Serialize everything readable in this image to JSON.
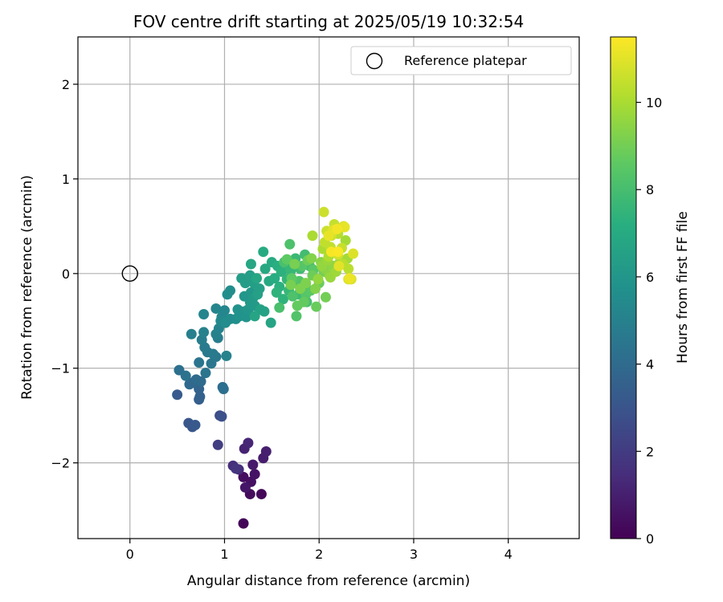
{
  "chart_data": {
    "type": "scatter",
    "title": "FOV centre drift starting at 2025/05/19 10:32:54",
    "xlabel": "Angular distance from reference (arcmin)",
    "ylabel": "Rotation from reference (arcmin)",
    "xlim": [
      -0.55,
      4.75
    ],
    "ylim": [
      -2.8,
      2.5
    ],
    "xticks": [
      0,
      1,
      2,
      3,
      4
    ],
    "yticks": [
      -2,
      -1,
      0,
      1,
      2
    ],
    "grid": true,
    "legend": {
      "position": "top-right",
      "entries": [
        "Reference platepar"
      ]
    },
    "reference_point": {
      "label": "Reference platepar",
      "x": 0,
      "y": 0
    },
    "colorbar": {
      "label": "Hours from first FF file",
      "colormap": "viridis",
      "range": [
        0,
        11.5
      ],
      "ticks": [
        0,
        2,
        4,
        6,
        8,
        10
      ]
    },
    "points": [
      [
        1.2,
        -2.64,
        0.1
      ],
      [
        1.39,
        -2.33,
        0.2
      ],
      [
        1.27,
        -2.33,
        0.3
      ],
      [
        1.2,
        -2.15,
        0.4
      ],
      [
        1.28,
        -2.2,
        0.5
      ],
      [
        1.32,
        -2.12,
        0.6
      ],
      [
        1.22,
        -2.26,
        0.7
      ],
      [
        1.3,
        -2.02,
        0.8
      ],
      [
        1.41,
        -1.95,
        0.9
      ],
      [
        1.44,
        -1.88,
        1.0
      ],
      [
        1.21,
        -1.85,
        1.1
      ],
      [
        1.25,
        -1.79,
        1.2
      ],
      [
        1.15,
        -2.07,
        1.4
      ],
      [
        1.09,
        -2.03,
        1.5
      ],
      [
        1.12,
        -2.06,
        1.7
      ],
      [
        0.93,
        -1.81,
        2.1
      ],
      [
        0.95,
        -1.5,
        2.6
      ],
      [
        0.97,
        -1.51,
        2.8
      ],
      [
        0.66,
        -1.62,
        3.0
      ],
      [
        0.62,
        -1.58,
        3.1
      ],
      [
        0.69,
        -1.6,
        3.2
      ],
      [
        0.5,
        -1.28,
        3.3
      ],
      [
        0.73,
        -1.33,
        3.4
      ],
      [
        0.74,
        -1.3,
        3.5
      ],
      [
        0.73,
        -1.22,
        3.6
      ],
      [
        0.72,
        -1.18,
        3.7
      ],
      [
        0.67,
        -1.15,
        3.8
      ],
      [
        0.63,
        -1.17,
        3.9
      ],
      [
        0.75,
        -1.14,
        4.0
      ],
      [
        0.7,
        -1.12,
        4.0
      ],
      [
        0.98,
        -1.2,
        4.1
      ],
      [
        0.99,
        -1.22,
        4.2
      ],
      [
        0.52,
        -1.02,
        4.2
      ],
      [
        0.59,
        -1.08,
        4.3
      ],
      [
        0.8,
        -1.05,
        4.4
      ],
      [
        0.73,
        -0.94,
        4.4
      ],
      [
        0.86,
        -0.95,
        4.5
      ],
      [
        0.91,
        -0.88,
        4.6
      ],
      [
        0.82,
        -0.83,
        4.6
      ],
      [
        0.79,
        -0.78,
        4.7
      ],
      [
        0.88,
        -0.85,
        4.7
      ],
      [
        0.93,
        -0.68,
        4.8
      ],
      [
        0.76,
        -0.7,
        4.8
      ],
      [
        0.65,
        -0.64,
        4.9
      ],
      [
        0.78,
        -0.62,
        5.0
      ],
      [
        0.91,
        -0.64,
        5.0
      ],
      [
        0.94,
        -0.58,
        5.1
      ],
      [
        1.02,
        -0.87,
        5.1
      ],
      [
        0.78,
        -0.43,
        5.2
      ],
      [
        0.91,
        -0.37,
        5.2
      ],
      [
        0.97,
        -0.46,
        5.3
      ],
      [
        1.0,
        -0.39,
        5.3
      ],
      [
        0.96,
        -0.5,
        5.4
      ],
      [
        1.01,
        -0.52,
        5.5
      ],
      [
        1.06,
        -0.48,
        5.5
      ],
      [
        1.03,
        -0.22,
        5.6
      ],
      [
        1.06,
        -0.18,
        5.6
      ],
      [
        1.12,
        -0.48,
        5.7
      ],
      [
        1.16,
        -0.45,
        5.8
      ],
      [
        1.14,
        -0.38,
        5.8
      ],
      [
        1.21,
        -0.4,
        5.9
      ],
      [
        1.23,
        -0.46,
        5.9
      ],
      [
        1.25,
        -0.38,
        6.0
      ],
      [
        1.21,
        -0.24,
        6.0
      ],
      [
        1.27,
        -0.3,
        6.1
      ],
      [
        1.28,
        -0.2,
        6.1
      ],
      [
        1.32,
        -0.34,
        6.2
      ],
      [
        1.3,
        -0.26,
        6.2
      ],
      [
        1.18,
        -0.05,
        6.3
      ],
      [
        1.22,
        -0.1,
        6.3
      ],
      [
        1.27,
        -0.02,
        6.4
      ],
      [
        1.31,
        -0.1,
        6.4
      ],
      [
        1.37,
        -0.16,
        6.5
      ],
      [
        1.35,
        -0.22,
        6.5
      ],
      [
        1.38,
        -0.38,
        6.6
      ],
      [
        1.42,
        -0.4,
        6.6
      ],
      [
        1.32,
        -0.45,
        6.7
      ],
      [
        1.49,
        -0.52,
        6.7
      ],
      [
        1.28,
        0.1,
        6.8
      ],
      [
        1.34,
        -0.05,
        6.8
      ],
      [
        1.43,
        0.05,
        6.9
      ],
      [
        1.47,
        -0.08,
        6.9
      ],
      [
        1.41,
        0.23,
        7.0
      ],
      [
        1.5,
        0.12,
        7.0
      ],
      [
        1.53,
        -0.05,
        7.1
      ],
      [
        1.56,
        0.08,
        7.2
      ],
      [
        1.58,
        -0.14,
        7.3
      ],
      [
        1.6,
        0.02,
        7.3
      ],
      [
        1.55,
        -0.2,
        7.4
      ],
      [
        1.62,
        -0.27,
        7.4
      ],
      [
        1.65,
        0.1,
        7.5
      ],
      [
        1.66,
        -0.06,
        7.5
      ],
      [
        1.68,
        -0.18,
        7.6
      ],
      [
        1.7,
        0.03,
        7.6
      ],
      [
        1.73,
        -0.1,
        7.7
      ],
      [
        1.75,
        0.16,
        7.7
      ],
      [
        1.78,
        -0.22,
        7.8
      ],
      [
        1.8,
        0.05,
        7.8
      ],
      [
        1.83,
        -0.12,
        7.9
      ],
      [
        1.85,
        0.2,
        7.9
      ],
      [
        1.87,
        -0.3,
        8.0
      ],
      [
        1.9,
        0.08,
        8.0
      ],
      [
        1.58,
        -0.36,
        8.1
      ],
      [
        1.63,
        0.12,
        8.1
      ],
      [
        1.69,
        0.31,
        8.2
      ],
      [
        1.72,
        -0.24,
        8.2
      ],
      [
        1.76,
        -0.45,
        8.3
      ],
      [
        1.79,
        -0.08,
        8.3
      ],
      [
        1.82,
        0.08,
        8.4
      ],
      [
        1.86,
        -0.22,
        8.4
      ],
      [
        1.91,
        -0.18,
        8.5
      ],
      [
        1.94,
        0.04,
        8.5
      ],
      [
        1.66,
        0.15,
        8.6
      ],
      [
        1.71,
        -0.05,
        8.6
      ],
      [
        1.77,
        -0.34,
        8.7
      ],
      [
        1.84,
        -0.3,
        8.7
      ],
      [
        1.97,
        -0.35,
        8.8
      ],
      [
        2.0,
        -0.1,
        8.8
      ],
      [
        1.88,
        0.14,
        8.9
      ],
      [
        1.93,
        -0.02,
        8.9
      ],
      [
        2.05,
        0.02,
        9.0
      ],
      [
        2.07,
        -0.25,
        9.0
      ],
      [
        1.7,
        -0.12,
        9.1
      ],
      [
        1.74,
        0.1,
        9.1
      ],
      [
        1.8,
        -0.16,
        9.2
      ],
      [
        1.86,
        -0.1,
        9.2
      ],
      [
        1.92,
        0.16,
        9.3
      ],
      [
        1.96,
        -0.16,
        9.3
      ],
      [
        2.02,
        0.12,
        9.4
      ],
      [
        2.06,
        0.05,
        9.4
      ],
      [
        2.11,
        -0.02,
        9.5
      ],
      [
        2.15,
        0.08,
        9.5
      ],
      [
        1.99,
        -0.06,
        9.6
      ],
      [
        2.03,
        0.08,
        9.6
      ],
      [
        2.09,
        0.14,
        9.7
      ],
      [
        2.12,
        -0.04,
        9.7
      ],
      [
        2.18,
        0.02,
        9.8
      ],
      [
        2.22,
        0.12,
        9.8
      ],
      [
        2.28,
        0.35,
        9.9
      ],
      [
        2.3,
        0.16,
        9.9
      ],
      [
        1.93,
        0.4,
        10.0
      ],
      [
        2.04,
        0.26,
        10.0
      ],
      [
        2.1,
        0.18,
        10.1
      ],
      [
        2.14,
        0.22,
        10.1
      ],
      [
        2.17,
        0.48,
        10.2
      ],
      [
        2.2,
        0.42,
        10.2
      ],
      [
        2.25,
        0.1,
        10.3
      ],
      [
        2.31,
        0.05,
        10.3
      ],
      [
        2.06,
        0.33,
        10.4
      ],
      [
        2.12,
        0.28,
        10.4
      ],
      [
        2.16,
        0.52,
        10.5
      ],
      [
        2.24,
        0.27,
        10.5
      ],
      [
        2.05,
        0.65,
        10.6
      ],
      [
        2.08,
        0.45,
        10.6
      ],
      [
        2.13,
        0.4,
        10.7
      ],
      [
        2.2,
        0.2,
        10.7
      ],
      [
        2.26,
        0.5,
        10.8
      ],
      [
        2.31,
        -0.06,
        10.8
      ],
      [
        2.34,
        -0.06,
        10.9
      ],
      [
        2.36,
        0.21,
        10.9
      ],
      [
        2.21,
        0.08,
        11.0
      ],
      [
        2.15,
        0.46,
        11.0
      ],
      [
        2.1,
        0.4,
        11.1
      ],
      [
        2.27,
        0.49,
        11.1
      ],
      [
        2.32,
        -0.05,
        11.2
      ],
      [
        2.19,
        0.47,
        11.3
      ],
      [
        2.13,
        0.23,
        11.4
      ],
      [
        2.2,
        0.23,
        11.45
      ]
    ]
  }
}
